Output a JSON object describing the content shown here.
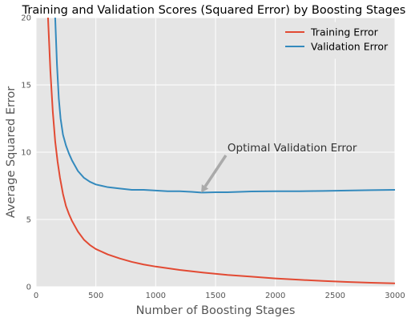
{
  "chart_data": {
    "type": "line",
    "title": "Training and Validation Scores (Squared Error) by Boosting Stages",
    "xlabel": "Number of Boosting Stages",
    "ylabel": "Average Squared Error",
    "xlim": [
      0,
      3000
    ],
    "ylim": [
      0,
      20
    ],
    "x_ticks": [
      "0",
      "500",
      "1000",
      "1500",
      "2000",
      "2500",
      "3000"
    ],
    "y_ticks": [
      "0",
      "5",
      "10",
      "15",
      "20"
    ],
    "grid": true,
    "legend_position": "top-right",
    "background": "#e5e5e5",
    "series": [
      {
        "name": "Training Error",
        "color": "#e24a33",
        "x": [
          100,
          120,
          140,
          160,
          180,
          200,
          225,
          250,
          275,
          300,
          350,
          400,
          450,
          500,
          600,
          700,
          800,
          900,
          1000,
          1200,
          1400,
          1600,
          1800,
          2000,
          2200,
          2400,
          2600,
          2800,
          3000
        ],
        "y": [
          20.0,
          16.0,
          13.0,
          10.8,
          9.3,
          8.1,
          6.9,
          6.0,
          5.4,
          4.9,
          4.1,
          3.5,
          3.1,
          2.8,
          2.4,
          2.1,
          1.85,
          1.65,
          1.5,
          1.25,
          1.05,
          0.88,
          0.75,
          0.62,
          0.52,
          0.43,
          0.36,
          0.3,
          0.25
        ]
      },
      {
        "name": "Validation Error",
        "color": "#348abd",
        "x": [
          160,
          175,
          190,
          205,
          225,
          250,
          275,
          300,
          350,
          400,
          450,
          500,
          550,
          600,
          700,
          800,
          900,
          1000,
          1100,
          1200,
          1300,
          1380,
          1500,
          1600,
          1700,
          1800,
          2000,
          2200,
          2400,
          2600,
          2800,
          3000
        ],
        "y": [
          20.0,
          16.5,
          14.0,
          12.5,
          11.3,
          10.5,
          9.9,
          9.4,
          8.6,
          8.1,
          7.8,
          7.6,
          7.5,
          7.4,
          7.3,
          7.2,
          7.2,
          7.15,
          7.1,
          7.1,
          7.05,
          7.0,
          7.02,
          7.02,
          7.05,
          7.08,
          7.1,
          7.1,
          7.12,
          7.15,
          7.18,
          7.2
        ]
      }
    ],
    "annotation": {
      "text": "Optimal Validation Error",
      "point": [
        1380,
        7.0
      ],
      "text_at": [
        1600,
        10.0
      ]
    }
  }
}
